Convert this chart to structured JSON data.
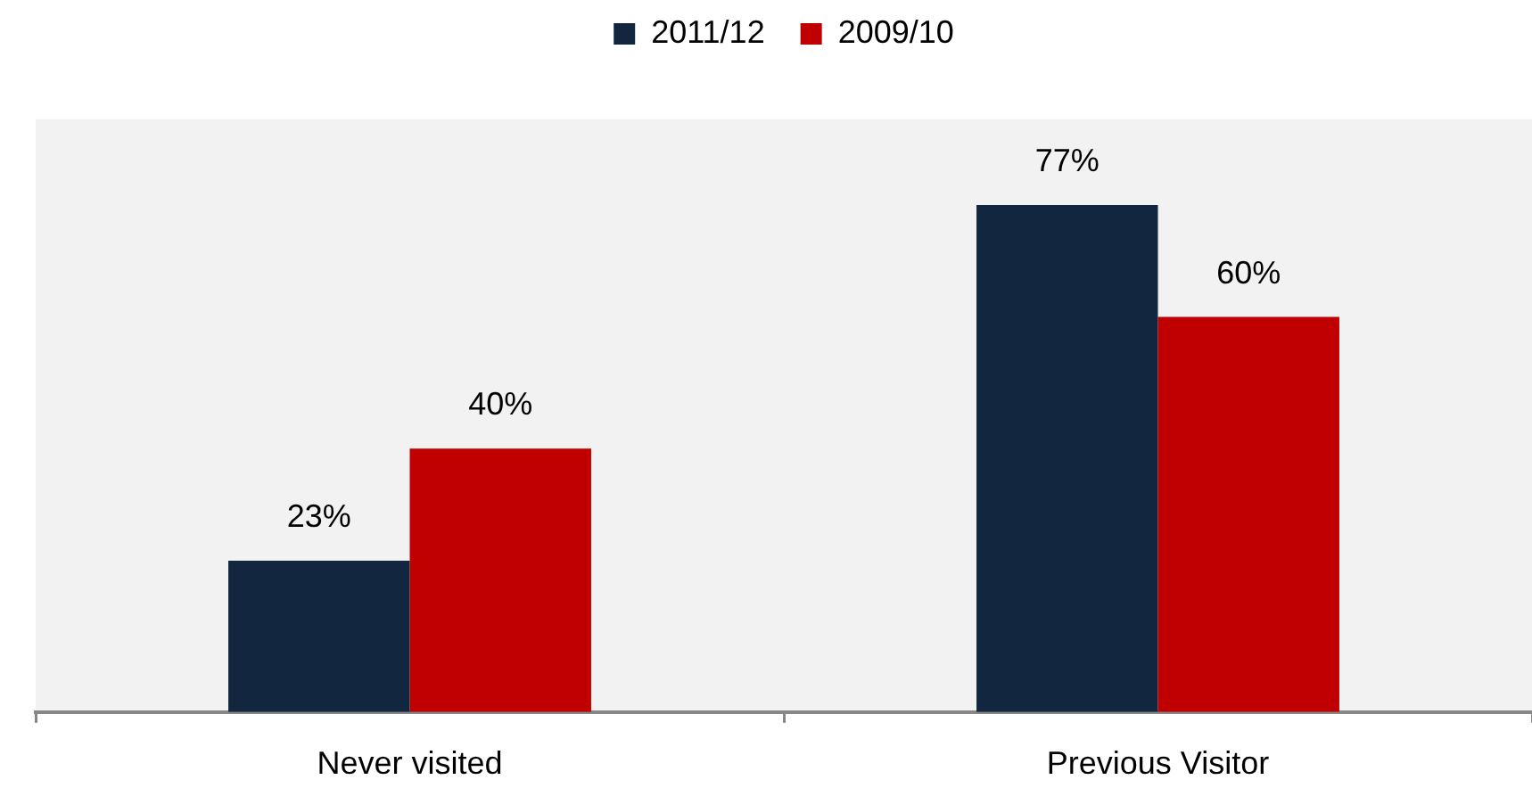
{
  "chart_data": {
    "type": "bar",
    "categories": [
      "Never visited",
      "Previous Visitor"
    ],
    "series": [
      {
        "name": "2011/12",
        "color": "#12263f",
        "values": [
          23,
          77
        ],
        "value_labels": [
          "23%",
          "77%"
        ]
      },
      {
        "name": "2009/10",
        "color": "#c00000",
        "values": [
          40,
          60
        ],
        "value_labels": [
          "40%",
          "60%"
        ]
      }
    ],
    "ylim": [
      0,
      90
    ],
    "legend": "top",
    "tick_labels": "x"
  }
}
